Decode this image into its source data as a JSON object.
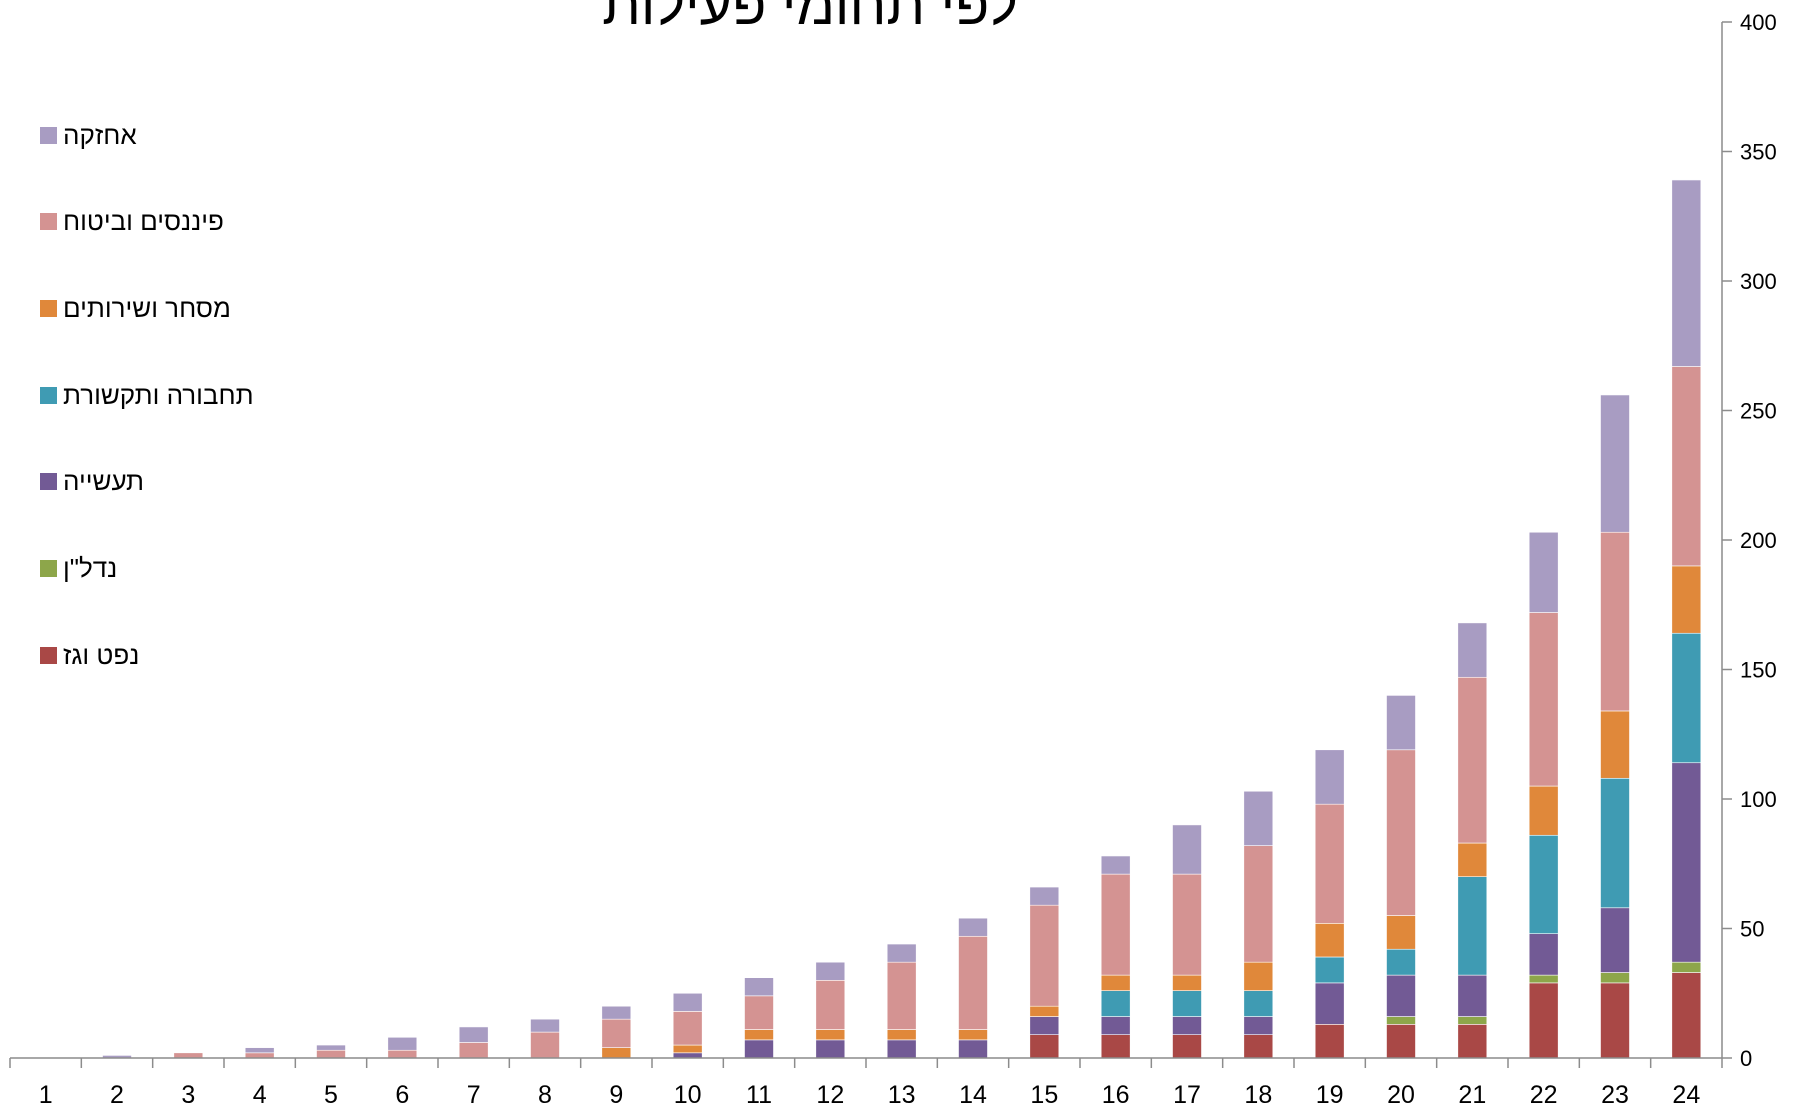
{
  "chart_data": {
    "type": "bar",
    "stacked": true,
    "title": "לפי תחומי פעילות",
    "categories": [
      "1",
      "2",
      "3",
      "4",
      "5",
      "6",
      "7",
      "8",
      "9",
      "10",
      "11",
      "12",
      "13",
      "14",
      "15",
      "16",
      "17",
      "18",
      "19",
      "20",
      "21",
      "22",
      "23",
      "24"
    ],
    "ylim": [
      0,
      400
    ],
    "yticks": [
      0,
      50,
      100,
      150,
      200,
      250,
      300,
      350,
      400
    ],
    "y_axis_side": "right",
    "legend_position": "left",
    "grid": false,
    "series": [
      {
        "name": "נפט וגז",
        "color": "#A94846",
        "values": [
          0,
          0,
          0,
          0,
          0,
          0,
          0,
          0,
          0,
          0,
          0,
          0,
          0,
          0,
          9,
          9,
          9,
          9,
          13,
          13,
          13,
          29,
          29,
          33
        ]
      },
      {
        "name": "נדל\"ן",
        "color": "#8DA64A",
        "values": [
          0,
          0,
          0,
          0,
          0,
          0,
          0,
          0,
          0,
          0,
          0,
          0,
          0,
          0,
          0,
          0,
          0,
          0,
          0,
          3,
          3,
          3,
          4,
          4
        ]
      },
      {
        "name": "תעשייה",
        "color": "#725A95",
        "values": [
          0,
          0,
          0,
          0,
          0,
          0,
          0,
          0,
          0,
          2,
          7,
          7,
          7,
          7,
          7,
          7,
          7,
          7,
          16,
          16,
          16,
          16,
          25,
          77
        ]
      },
      {
        "name": "תחבורה ותקשורת",
        "color": "#3F9BB3",
        "values": [
          0,
          0,
          0,
          0,
          0,
          0,
          0,
          0,
          0,
          0,
          0,
          0,
          0,
          0,
          0,
          10,
          10,
          10,
          10,
          10,
          38,
          38,
          50,
          50
        ]
      },
      {
        "name": "מסחר ושירותים",
        "color": "#E0883A",
        "values": [
          0,
          0,
          0,
          0,
          0,
          0,
          0,
          0,
          4,
          3,
          4,
          4,
          4,
          4,
          4,
          6,
          6,
          11,
          13,
          13,
          13,
          19,
          26,
          26
        ]
      },
      {
        "name": "פיננסים וביטוח",
        "color": "#D49392",
        "values": [
          0,
          0,
          2,
          2,
          3,
          3,
          6,
          10,
          11,
          13,
          13,
          19,
          26,
          36,
          39,
          39,
          39,
          45,
          46,
          64,
          64,
          67,
          69,
          77
        ]
      },
      {
        "name": "אחזקה",
        "color": "#A89CC2",
        "values": [
          0,
          1,
          0,
          2,
          2,
          5,
          6,
          5,
          5,
          7,
          7,
          7,
          7,
          7,
          7,
          7,
          19,
          21,
          21,
          21,
          21,
          31,
          53,
          72
        ]
      }
    ]
  }
}
